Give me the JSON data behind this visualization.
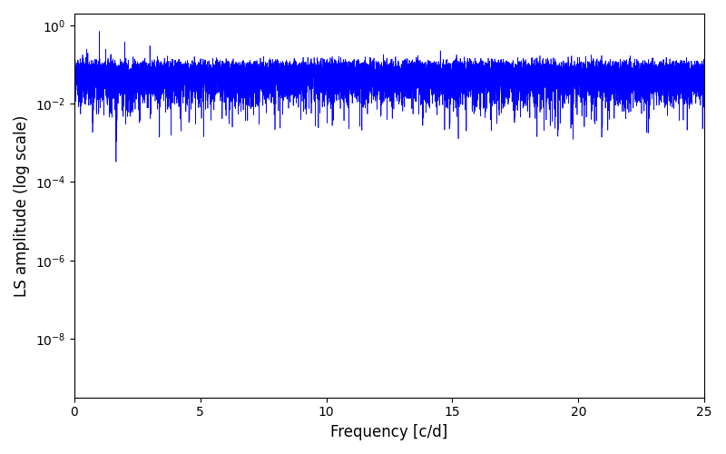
{
  "xlabel": "Frequency [c/d]",
  "ylabel": "LS amplitude (log scale)",
  "xlim": [
    0,
    25
  ],
  "ylim_log": [
    -9.5,
    0.3
  ],
  "line_color": "#0000ff",
  "line_width": 0.5,
  "freq_max": 25.0,
  "seed": 12345,
  "background_color": "#ffffff",
  "figsize": [
    8.0,
    5.0
  ],
  "dpi": 100,
  "n_time": 2000,
  "obs_span": 1000
}
